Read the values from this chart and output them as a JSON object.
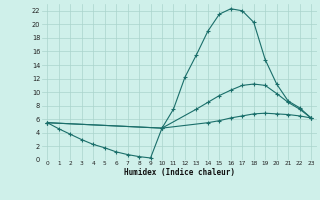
{
  "xlabel": "Humidex (Indice chaleur)",
  "bg_color": "#cff0ea",
  "grid_color": "#aad4cc",
  "line_color": "#1a6e6a",
  "xlim": [
    -0.5,
    23.5
  ],
  "ylim": [
    0,
    23
  ],
  "xticks": [
    0,
    1,
    2,
    3,
    4,
    5,
    6,
    7,
    8,
    9,
    10,
    11,
    12,
    13,
    14,
    15,
    16,
    17,
    18,
    19,
    20,
    21,
    22,
    23
  ],
  "yticks": [
    0,
    2,
    4,
    6,
    8,
    10,
    12,
    14,
    16,
    18,
    20,
    22
  ],
  "series": [
    {
      "x": [
        0,
        1,
        2,
        3,
        4,
        5,
        6,
        7,
        8,
        9,
        10,
        11,
        12,
        13,
        14,
        15,
        16,
        17,
        18,
        19,
        20,
        21,
        22,
        23
      ],
      "y": [
        5.5,
        4.6,
        3.8,
        3.0,
        2.3,
        1.8,
        1.2,
        0.8,
        0.5,
        0.3,
        4.7,
        7.5,
        12.2,
        15.5,
        19.0,
        21.5,
        22.3,
        22.0,
        20.3,
        14.8,
        11.2,
        8.7,
        7.7,
        6.2
      ]
    },
    {
      "x": [
        0,
        10,
        13,
        14,
        15,
        16,
        17,
        18,
        19,
        20,
        21,
        22,
        23
      ],
      "y": [
        5.5,
        4.7,
        7.5,
        8.5,
        9.5,
        10.3,
        11.0,
        11.2,
        11.0,
        9.8,
        8.5,
        7.5,
        6.2
      ]
    },
    {
      "x": [
        0,
        10,
        14,
        15,
        16,
        17,
        18,
        19,
        20,
        21,
        22,
        23
      ],
      "y": [
        5.5,
        4.7,
        5.5,
        5.8,
        6.2,
        6.5,
        6.8,
        6.9,
        6.8,
        6.7,
        6.5,
        6.2
      ]
    }
  ]
}
